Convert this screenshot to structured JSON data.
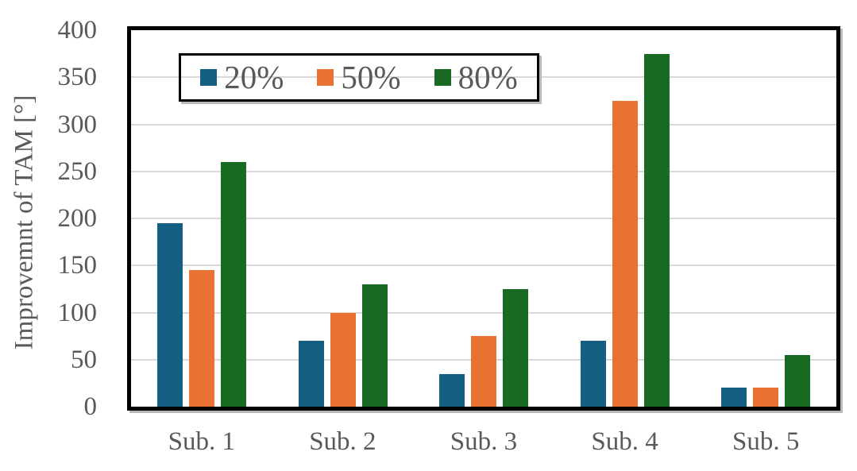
{
  "chart_data": {
    "type": "bar",
    "title": "",
    "ylabel": "Improvemnt of TAM [°]",
    "xlabel": "",
    "categories": [
      "Sub. 1",
      "Sub. 2",
      "Sub. 3",
      "Sub. 4",
      "Sub. 5"
    ],
    "series": [
      {
        "name": "20%",
        "color": "#156082",
        "values": [
          195,
          70,
          35,
          70,
          20
        ]
      },
      {
        "name": "50%",
        "color": "#E97132",
        "values": [
          145,
          100,
          75,
          325,
          20
        ]
      },
      {
        "name": "80%",
        "color": "#196B24",
        "values": [
          260,
          130,
          125,
          375,
          55
        ]
      }
    ],
    "ylim": [
      0,
      400
    ],
    "yticks": [
      0,
      50,
      100,
      150,
      200,
      250,
      300,
      350,
      400
    ],
    "grid": "horizontal",
    "gridline_values": [
      50,
      100,
      150,
      200,
      250,
      300,
      350
    ],
    "legend_position": "top-inside",
    "legend_entries": [
      "20%",
      "50%",
      "80%"
    ],
    "styles": {
      "text_color": "#595959",
      "gridline_color": "#d9d9d9",
      "frame_color": "#000000",
      "shadow_color": "#b9b9b9",
      "background": "#ffffff"
    }
  }
}
